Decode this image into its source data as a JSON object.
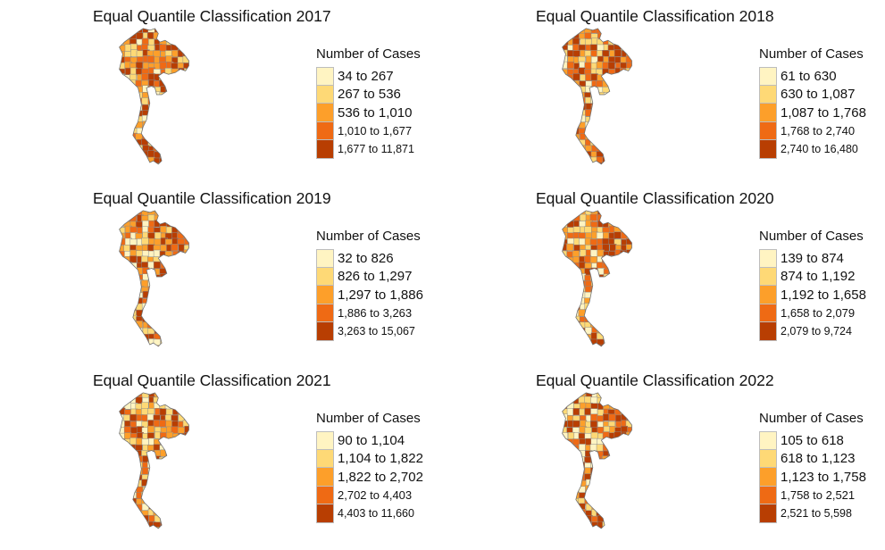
{
  "palette": [
    "#fff4c2",
    "#fed976",
    "#fd9f2a",
    "#ef6a14",
    "#b83e02"
  ],
  "legend_title": "Number of Cases",
  "panels": [
    {
      "title": "Equal Quantile Classification 2017",
      "classes": [
        "34 to 267",
        "267 to 536",
        "536 to 1,010",
        "1,010 to 1,677",
        "1,677 to 11,871"
      ],
      "seed": 17
    },
    {
      "title": "Equal Quantile Classification 2018",
      "classes": [
        "61 to 630",
        "630 to 1,087",
        "1,087 to 1,768",
        "1,768 to 2,740",
        "2,740 to 16,480"
      ],
      "seed": 18
    },
    {
      "title": "Equal Quantile Classification 2019",
      "classes": [
        "32 to 826",
        "826 to 1,297",
        "1,297 to 1,886",
        "1,886 to 3,263",
        "3,263 to 15,067"
      ],
      "seed": 19
    },
    {
      "title": "Equal Quantile Classification 2020",
      "classes": [
        "139 to 874",
        "874 to 1,192",
        "1,192 to 1,658",
        "1,658 to 2,079",
        "2,079 to 9,724"
      ],
      "seed": 20
    },
    {
      "title": "Equal Quantile Classification 2021",
      "classes": [
        "90 to 1,104",
        "1,104 to 1,822",
        "1,822 to 2,702",
        "2,702 to 4,403",
        "4,403 to 11,660"
      ],
      "seed": 21
    },
    {
      "title": "Equal Quantile Classification 2022",
      "classes": [
        "105 to 618",
        "618 to 1,123",
        "1,123 to 1,758",
        "1,758 to 2,521",
        "2,521 to 5,598"
      ],
      "seed": 22
    }
  ]
}
